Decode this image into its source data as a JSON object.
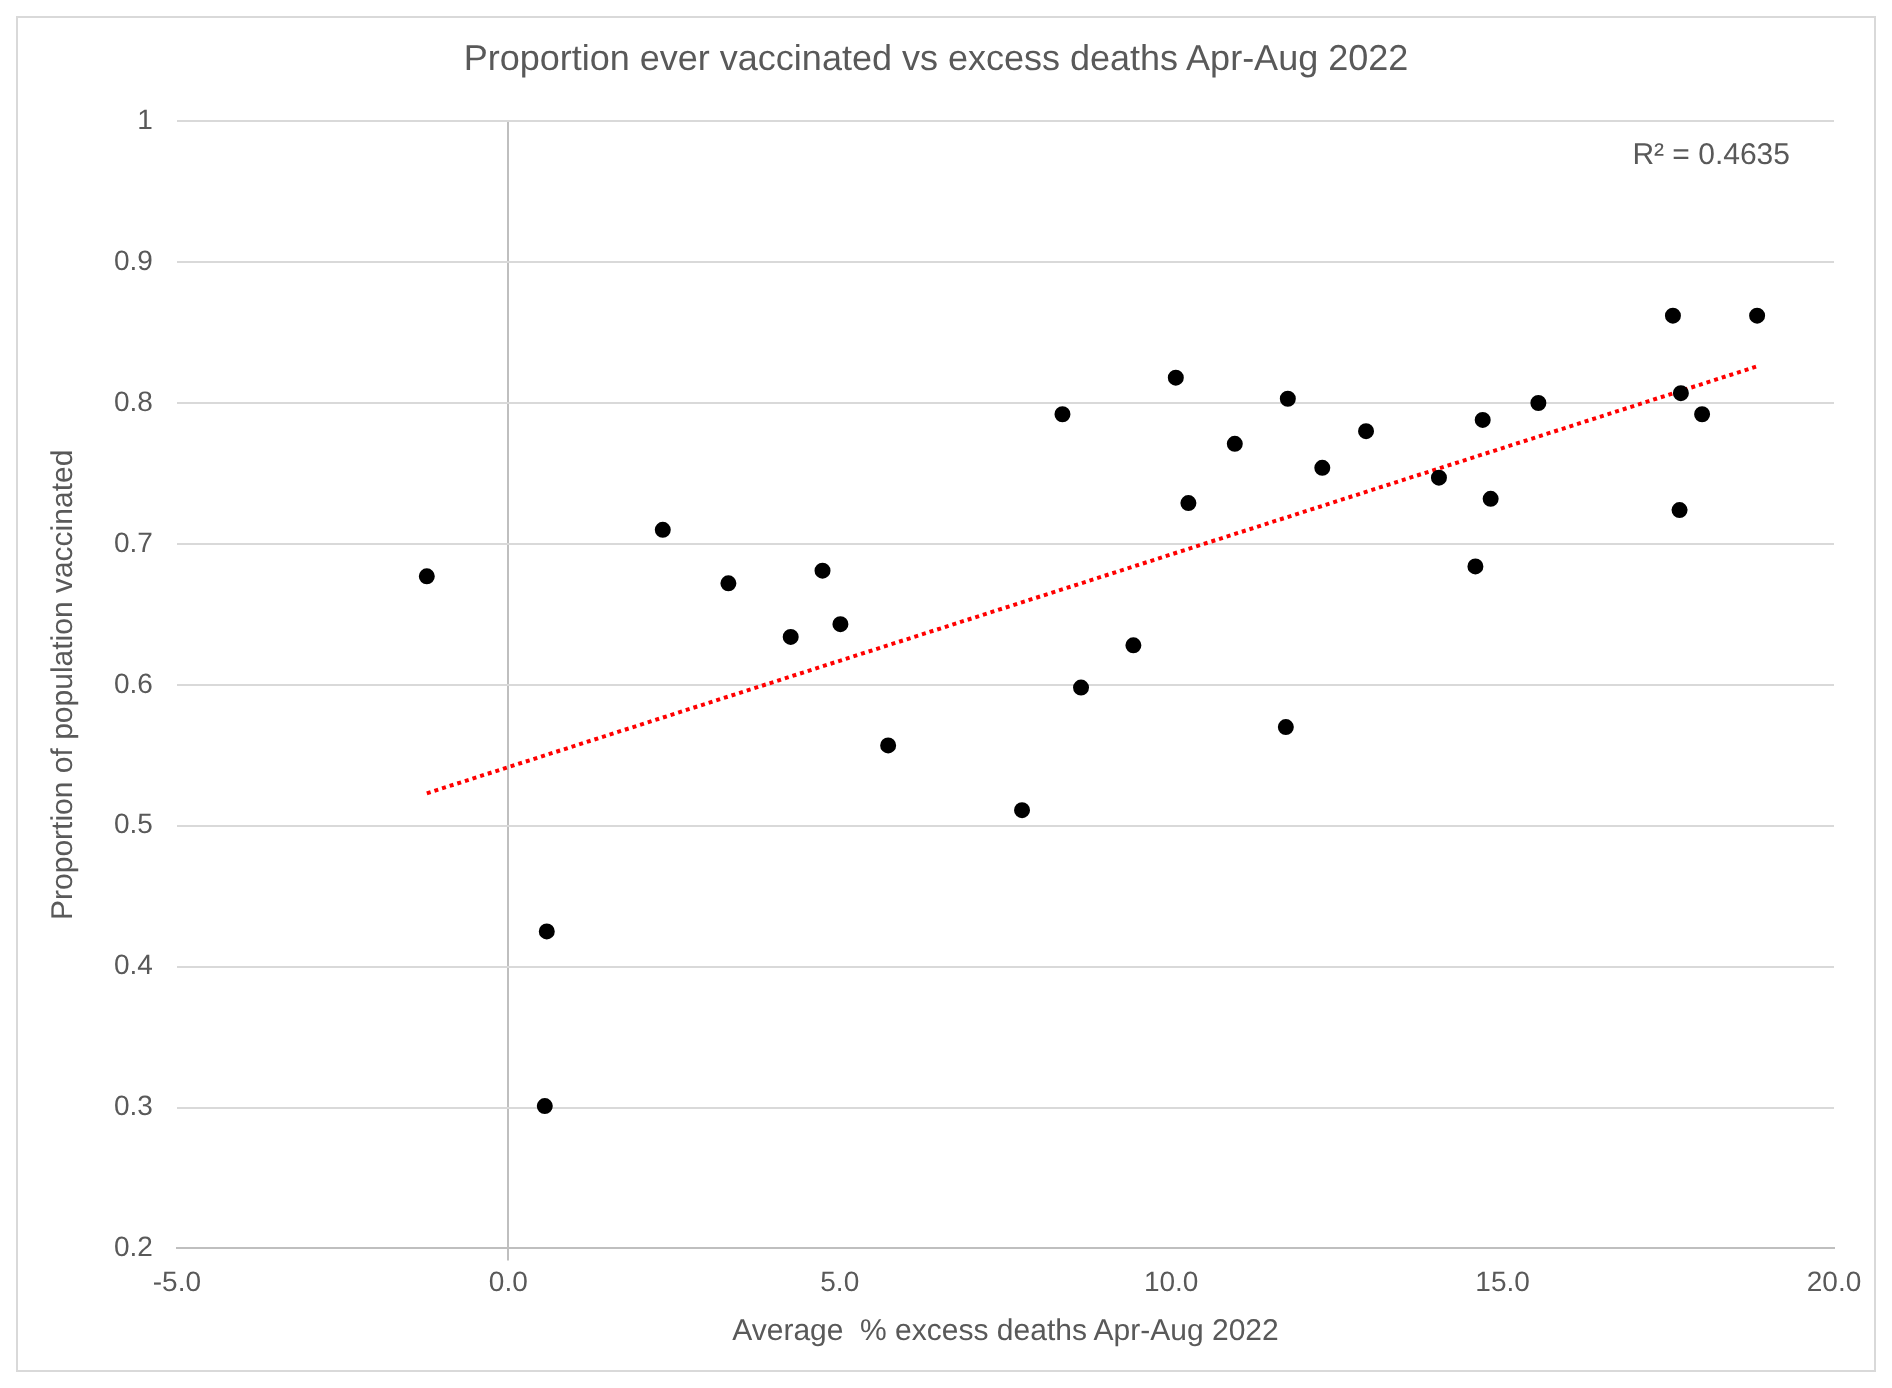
{
  "chart_data": {
    "type": "scatter",
    "title": "Proportion ever vaccinated vs excess deaths Apr-Aug 2022",
    "xlabel": "Average  % excess deaths Apr-Aug 2022",
    "ylabel": "Proportion of population vaccinated",
    "series": [
      {
        "color": "#000000",
        "marker": "circle",
        "x": [
          -1.23,
          2.33,
          3.32,
          4.26,
          4.74,
          5.01,
          5.73,
          0.58,
          0.55,
          7.75,
          8.36,
          10.07,
          10.96,
          11.76,
          12.94,
          12.28,
          10.26,
          14.04,
          14.7,
          15.54,
          14.82,
          14.59,
          17.57,
          18.84,
          17.69,
          18.01,
          17.67,
          9.43,
          8.64,
          11.73
        ],
        "values": [
          0.677,
          0.71,
          0.672,
          0.634,
          0.681,
          0.643,
          0.557,
          0.425,
          0.301,
          0.511,
          0.792,
          0.818,
          0.771,
          0.803,
          0.78,
          0.754,
          0.729,
          0.747,
          0.788,
          0.8,
          0.732,
          0.684,
          0.862,
          0.862,
          0.807,
          0.792,
          0.724,
          0.628,
          0.598,
          0.57
        ]
      },
      {
        "type": "line",
        "color": "#ff0000",
        "line_style": "dotted",
        "marker": "none",
        "x": [
          -1.23,
          18.84
        ],
        "values": [
          0.523,
          0.826
        ]
      }
    ],
    "xlim": [
      -5,
      20
    ],
    "xticks": [
      {
        "value": -5,
        "label": "-5.0"
      },
      {
        "value": 0,
        "label": "0.0"
      },
      {
        "value": 5,
        "label": "5.0"
      },
      {
        "value": 10,
        "label": "10.0"
      },
      {
        "value": 15,
        "label": "15.0"
      },
      {
        "value": 20,
        "label": "20.0"
      }
    ],
    "ylim": [
      0.2,
      1
    ],
    "yticks": [
      0.2,
      0.3,
      0.4,
      0.5,
      0.6,
      0.7,
      0.8,
      0.9,
      1
    ],
    "grid": "y",
    "legend": false,
    "annotations": [
      "R² = 0.4635"
    ]
  }
}
